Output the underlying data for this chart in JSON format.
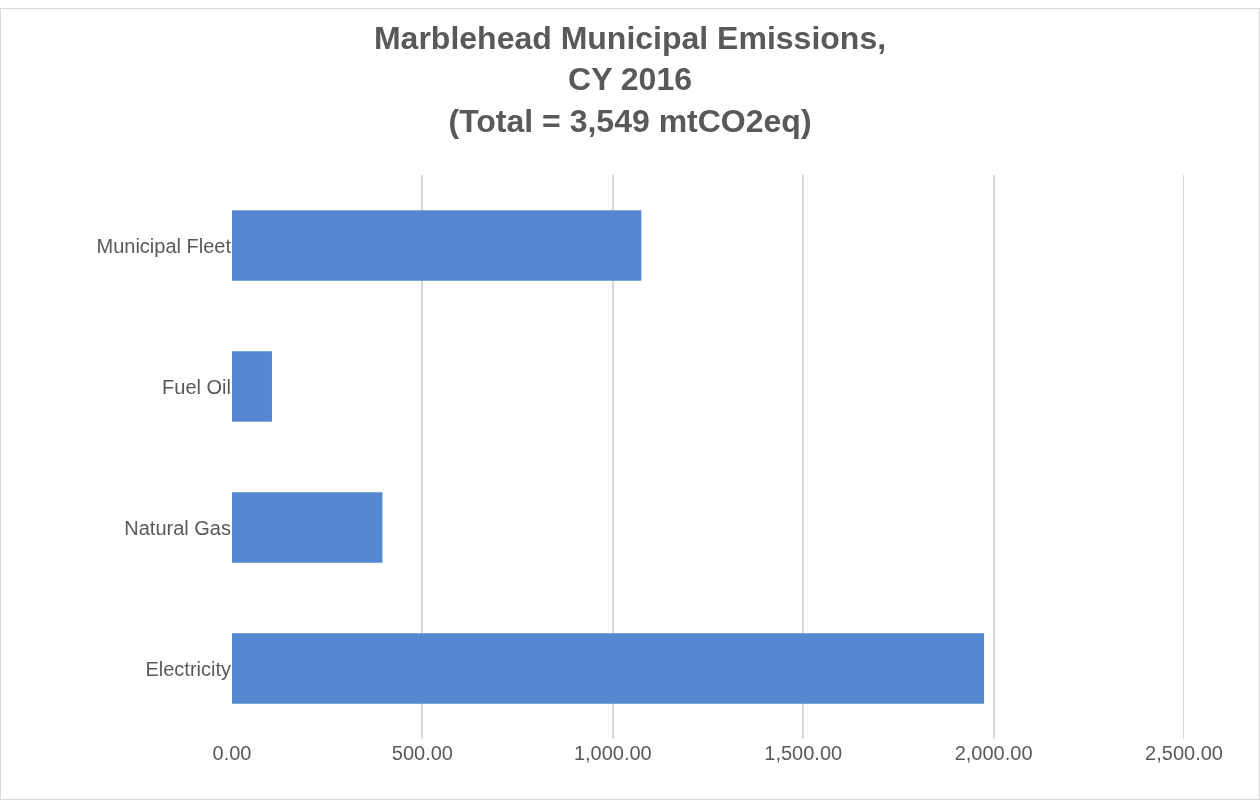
{
  "chart_data": {
    "type": "bar",
    "orientation": "horizontal",
    "title": "Marblehead Municipal Emissions,\nCY 2016\n(Total = 3,549 mtCO2eq)",
    "categories": [
      "Municipal Fleet",
      "Fuel Oil",
      "Natural Gas",
      "Electricity"
    ],
    "values": [
      1075,
      105,
      395,
      1975
    ],
    "color": "#5588d1",
    "xlim": [
      0,
      2500
    ],
    "xticks": [
      {
        "value": 0,
        "label": "0.00"
      },
      {
        "value": 500,
        "label": "500.00"
      },
      {
        "value": 1000,
        "label": "1,000.00"
      },
      {
        "value": 1500,
        "label": "1,500.00"
      },
      {
        "value": 2000,
        "label": "2,000.00"
      },
      {
        "value": 2500,
        "label": "2,500.00"
      }
    ],
    "grid": "x"
  }
}
